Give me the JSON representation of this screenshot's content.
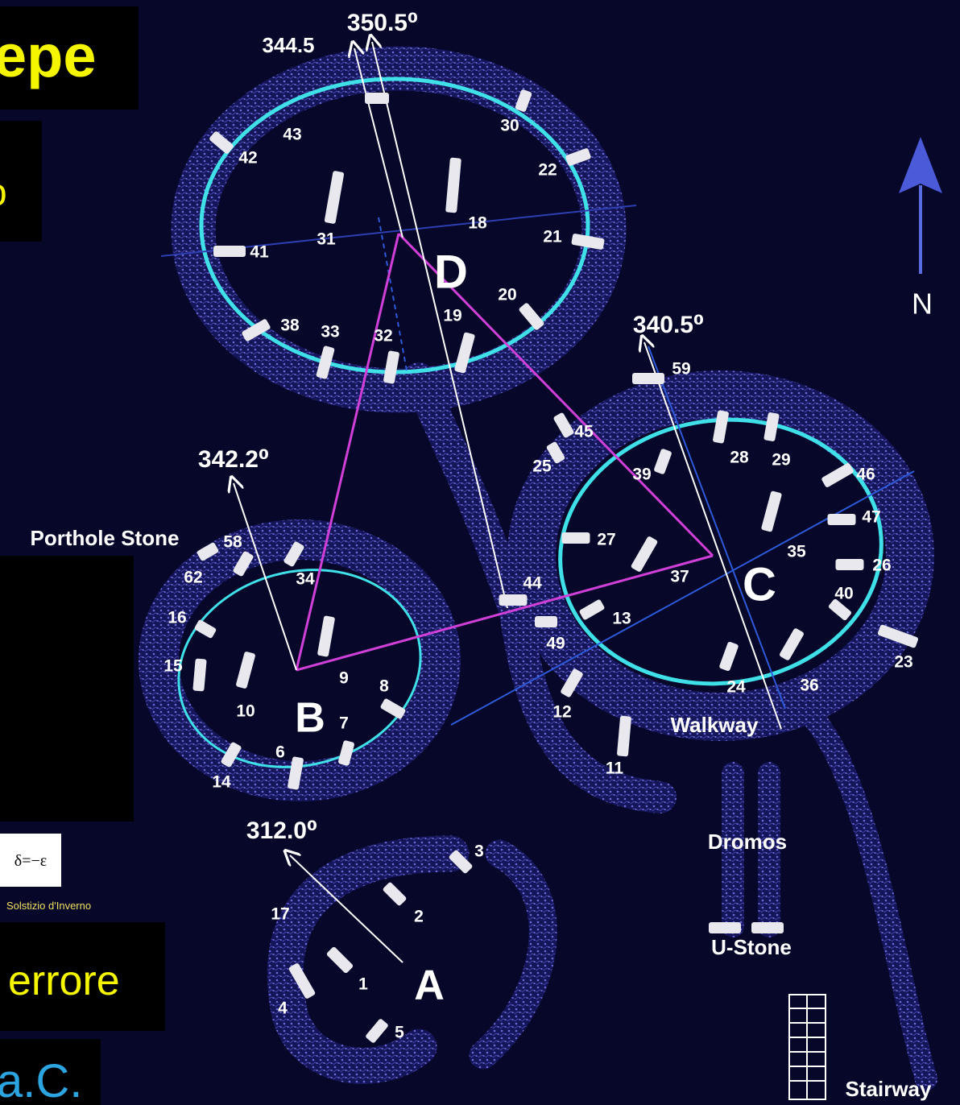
{
  "left_panel": {
    "title_fragment": "epe",
    "subtitle_fragment": "o",
    "formula": "δ=−ε",
    "caption": "Solstizio d'Inverno",
    "note_fragment": "errore",
    "date_fragment": "a.C."
  },
  "enclosures": [
    "D",
    "C",
    "B",
    "A"
  ],
  "bearings": [
    "350.5⁰",
    "344.5",
    "340.5⁰",
    "342.2⁰",
    "312.0⁰"
  ],
  "features": [
    "N",
    "Porthole Stone",
    "Walkway",
    "Dromos",
    "U-Stone",
    "Stairway"
  ],
  "stones": [
    "43",
    "30",
    "42",
    "22",
    "31",
    "18",
    "41",
    "21",
    "20",
    "38",
    "33",
    "32",
    "19",
    "59",
    "45",
    "25",
    "39",
    "28",
    "29",
    "46",
    "47",
    "27",
    "35",
    "26",
    "37",
    "40",
    "44",
    "13",
    "49",
    "23",
    "58",
    "62",
    "34",
    "16",
    "15",
    "9",
    "8",
    "10",
    "7",
    "6",
    "14",
    "24",
    "36",
    "12",
    "11",
    "3",
    "17",
    "2",
    "1",
    "4",
    "5"
  ]
}
